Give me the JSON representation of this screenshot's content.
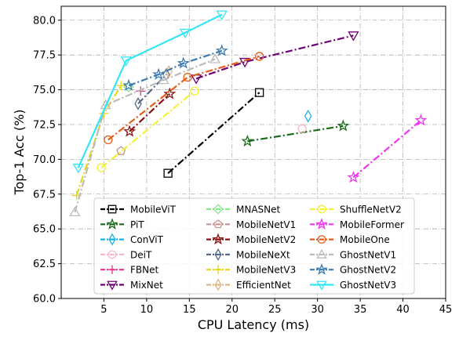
{
  "chart_data": {
    "type": "line",
    "title": "",
    "xlabel": "CPU Latency (ms)",
    "ylabel": "Top-1 Acc (%)",
    "xlim": [
      0,
      45
    ],
    "ylim": [
      60.0,
      81.0
    ],
    "xticks": [
      5,
      10,
      15,
      20,
      25,
      30,
      35,
      40,
      45
    ],
    "yticks": [
      60.0,
      62.5,
      65.0,
      67.5,
      70.0,
      72.5,
      75.0,
      77.5,
      80.0
    ],
    "xtick_labels": [
      "5",
      "10",
      "15",
      "20",
      "25",
      "30",
      "35",
      "40",
      "45"
    ],
    "ytick_labels": [
      "60.0",
      "62.5",
      "65.0",
      "67.5",
      "70.0",
      "72.5",
      "75.0",
      "77.5",
      "80.0"
    ],
    "grid": true,
    "legend_position": "bottom-center",
    "series": [
      {
        "name": "MobileViT",
        "color": "#000000",
        "marker": "square",
        "dash": "dashdot",
        "x": [
          12.5,
          23.2
        ],
        "y": [
          69.0,
          74.8
        ]
      },
      {
        "name": "PiT",
        "color": "#1a6b1a",
        "marker": "star",
        "dash": "dashdot",
        "x": [
          21.8,
          33.0
        ],
        "y": [
          71.3,
          72.4
        ]
      },
      {
        "name": "ConViT",
        "color": "#1ab3e6",
        "marker": "thin_diamond",
        "dash": "dashdot",
        "x": [
          28.9
        ],
        "y": [
          73.1
        ]
      },
      {
        "name": "DeiT",
        "color": "#f4b8c8",
        "marker": "circle",
        "dash": "dashdot",
        "x": [
          28.2
        ],
        "y": [
          72.2
        ]
      },
      {
        "name": "FBNet",
        "color": "#e8338a",
        "marker": "plus",
        "dash": "dashdot",
        "x": [
          9.3
        ],
        "y": [
          74.9
        ]
      },
      {
        "name": "MixNet",
        "color": "#700070",
        "marker": "triangle_down",
        "dash": "dashdot",
        "x": [
          15.8,
          21.5,
          34.2
        ],
        "y": [
          75.8,
          77.0,
          78.9
        ]
      },
      {
        "name": "MNASNet",
        "color": "#8ae68a",
        "marker": "diamond",
        "dash": "dashdot",
        "x": [
          7.9
        ],
        "y": [
          75.2
        ]
      },
      {
        "name": "MobileNetV1",
        "color": "#c99090",
        "marker": "pentagon",
        "dash": "dashdot",
        "x": [
          7.0
        ],
        "y": [
          70.6
        ]
      },
      {
        "name": "MobileNetV2",
        "color": "#8b1010",
        "marker": "star",
        "dash": "dashdot",
        "x": [
          8.0,
          12.7
        ],
        "y": [
          72.0,
          74.7
        ]
      },
      {
        "name": "MobileNeXt",
        "color": "#556a8a",
        "marker": "thin_diamond",
        "dash": "dashdot",
        "x": [
          9.0,
          12.3
        ],
        "y": [
          74.0,
          76.1
        ]
      },
      {
        "name": "MobileNetV3",
        "color": "#e6d619",
        "marker": "plus",
        "dash": "dashdot",
        "x": [
          1.8,
          5.0,
          7.0
        ],
        "y": [
          67.4,
          73.3,
          75.3
        ]
      },
      {
        "name": "EfficientNet",
        "color": "#d9b884",
        "marker": "thin_diamond",
        "dash": "dashdot",
        "x": [
          12.6
        ],
        "y": [
          76.3
        ]
      },
      {
        "name": "ShuffleNetV2",
        "color": "#f2f230",
        "marker": "circle",
        "dash": "dashdot",
        "x": [
          4.7,
          15.6
        ],
        "y": [
          69.4,
          74.9
        ]
      },
      {
        "name": "MobileFormer",
        "color": "#f033f0",
        "marker": "star",
        "dash": "dashdot",
        "x": [
          34.2,
          42.1
        ],
        "y": [
          68.7,
          72.8
        ]
      },
      {
        "name": "MobileOne",
        "color": "#e65c1a",
        "marker": "circle",
        "dash": "dashdot",
        "x": [
          5.5,
          14.8,
          23.2
        ],
        "y": [
          71.4,
          75.9,
          77.4
        ]
      },
      {
        "name": "GhostNetV1",
        "color": "#bbbbbb",
        "marker": "triangle_up",
        "dash": "dashdot",
        "x": [
          1.6,
          5.2,
          12.0,
          18.0
        ],
        "y": [
          66.2,
          73.9,
          75.7,
          77.2
        ]
      },
      {
        "name": "GhostNetV2",
        "color": "#3a7ab0",
        "marker": "star",
        "dash": "dashdot",
        "x": [
          7.9,
          11.4,
          14.3,
          18.8
        ],
        "y": [
          75.3,
          76.1,
          76.9,
          77.8
        ]
      },
      {
        "name": "GhostNetV3",
        "color": "#33e6f5",
        "marker": "triangle_down",
        "dash": "solid",
        "x": [
          2.0,
          7.6,
          14.5,
          18.8
        ],
        "y": [
          69.4,
          77.1,
          79.1,
          80.4
        ]
      }
    ]
  }
}
